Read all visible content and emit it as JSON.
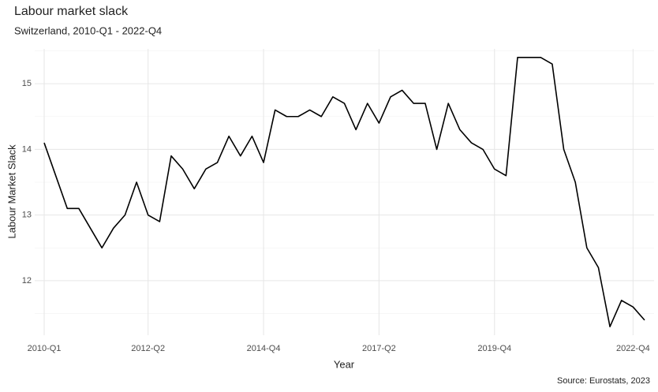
{
  "chart_data": {
    "type": "line",
    "title": "Labour market slack",
    "subtitle": "Switzerland, 2010-Q1 - 2022-Q4",
    "x_label": "Year",
    "y_label": "Labour Market Slack",
    "caption": "Source: Eurostats, 2023",
    "categories": [
      "2010-Q1",
      null,
      null,
      null,
      null,
      null,
      null,
      null,
      null,
      "2012-Q2",
      null,
      null,
      null,
      null,
      null,
      null,
      null,
      null,
      null,
      "2014-Q4",
      null,
      null,
      null,
      null,
      null,
      null,
      null,
      null,
      null,
      "2017-Q2",
      null,
      null,
      null,
      null,
      null,
      null,
      null,
      null,
      null,
      "2019-Q4",
      null,
      null,
      null,
      null,
      null,
      null,
      null,
      null,
      null,
      null,
      null,
      "2022-Q4",
      null
    ],
    "series": [
      {
        "name": "Labour Market Slack",
        "color": "#000000",
        "values": [
          14.1,
          13.6,
          13.1,
          13.1,
          12.8,
          12.5,
          12.8,
          13.0,
          13.5,
          13.0,
          12.9,
          13.9,
          13.7,
          13.4,
          13.7,
          13.8,
          14.2,
          13.9,
          14.2,
          13.8,
          14.6,
          14.5,
          14.5,
          14.6,
          14.5,
          14.8,
          14.7,
          14.3,
          14.7,
          14.4,
          14.8,
          14.9,
          14.7,
          14.7,
          14.0,
          14.7,
          14.3,
          14.1,
          14.0,
          13.7,
          13.6,
          15.4,
          15.4,
          15.4,
          15.3,
          14.0,
          13.5,
          12.5,
          12.2,
          11.3,
          11.7,
          11.6,
          11.4
        ]
      }
    ],
    "ylim": [
      11.17,
      15.53
    ],
    "yticks": [
      12,
      13,
      14,
      15
    ],
    "yminorticks": [
      11.5,
      12.5,
      13.5,
      14.5,
      15.5
    ],
    "grid": true
  }
}
